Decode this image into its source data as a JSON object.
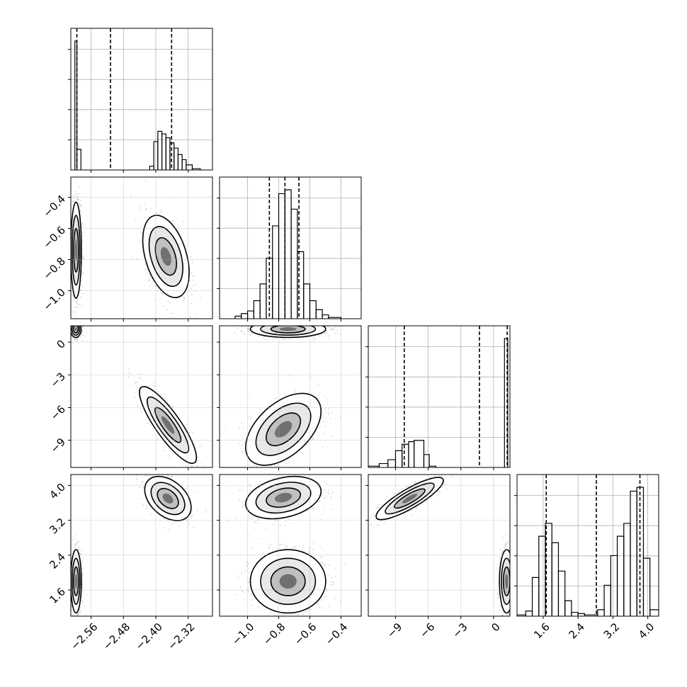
{
  "chart_data": {
    "type": "scatter",
    "title": "",
    "grid": true,
    "parameters": [
      {
        "ticks": [
          -2.56,
          -2.48,
          -2.4,
          -2.32
        ],
        "tick_labels": [
          "−2.56",
          "−2.48",
          "−2.40",
          "−2.32"
        ],
        "range": [
          -2.61,
          -2.26
        ]
      },
      {
        "ticks": [
          -1.0,
          -0.8,
          -0.6,
          -0.4
        ],
        "tick_labels": [
          "−1.0",
          "−0.8",
          "−0.6",
          "−0.4"
        ],
        "range": [
          -1.18,
          -0.27
        ]
      },
      {
        "ticks": [
          -9,
          -6,
          -3,
          0
        ],
        "tick_labels": [
          "−9",
          "−6",
          "−3",
          "0"
        ],
        "range": [
          -11.5,
          1.5
        ]
      },
      {
        "ticks": [
          1.6,
          2.4,
          3.2,
          4.0
        ],
        "tick_labels": [
          "1.6",
          "2.4",
          "3.2",
          "4.0"
        ],
        "range": [
          1.0,
          4.25
        ]
      }
    ],
    "histograms": [
      {
        "quantiles": [
          -2.595,
          -2.512,
          -2.361
        ],
        "bins": [
          {
            "x0": -2.6,
            "x1": -2.595,
            "h": 1.0
          },
          {
            "x0": -2.595,
            "x1": -2.585,
            "h": 0.16
          },
          {
            "x0": -2.415,
            "x1": -2.405,
            "h": 0.03
          },
          {
            "x0": -2.405,
            "x1": -2.395,
            "h": 0.22
          },
          {
            "x0": -2.395,
            "x1": -2.385,
            "h": 0.3
          },
          {
            "x0": -2.385,
            "x1": -2.375,
            "h": 0.28
          },
          {
            "x0": -2.375,
            "x1": -2.365,
            "h": 0.25
          },
          {
            "x0": -2.365,
            "x1": -2.355,
            "h": 0.21
          },
          {
            "x0": -2.355,
            "x1": -2.345,
            "h": 0.17
          },
          {
            "x0": -2.345,
            "x1": -2.335,
            "h": 0.12
          },
          {
            "x0": -2.335,
            "x1": -2.325,
            "h": 0.08
          },
          {
            "x0": -2.325,
            "x1": -2.31,
            "h": 0.04
          },
          {
            "x0": -2.31,
            "x1": -2.29,
            "h": 0.01
          }
        ]
      },
      {
        "quantiles": [
          -0.86,
          -0.76,
          -0.67
        ],
        "bins": [
          {
            "x0": -1.08,
            "x1": -1.04,
            "h": 0.02
          },
          {
            "x0": -1.04,
            "x1": -1.0,
            "h": 0.04
          },
          {
            "x0": -1.0,
            "x1": -0.96,
            "h": 0.06
          },
          {
            "x0": -0.96,
            "x1": -0.92,
            "h": 0.14
          },
          {
            "x0": -0.92,
            "x1": -0.88,
            "h": 0.27
          },
          {
            "x0": -0.88,
            "x1": -0.84,
            "h": 0.47
          },
          {
            "x0": -0.84,
            "x1": -0.8,
            "h": 0.72
          },
          {
            "x0": -0.8,
            "x1": -0.76,
            "h": 0.97
          },
          {
            "x0": -0.76,
            "x1": -0.72,
            "h": 1.0
          },
          {
            "x0": -0.72,
            "x1": -0.68,
            "h": 0.85
          },
          {
            "x0": -0.68,
            "x1": -0.64,
            "h": 0.52
          },
          {
            "x0": -0.64,
            "x1": -0.6,
            "h": 0.27
          },
          {
            "x0": -0.6,
            "x1": -0.56,
            "h": 0.14
          },
          {
            "x0": -0.56,
            "x1": -0.52,
            "h": 0.07
          },
          {
            "x0": -0.52,
            "x1": -0.48,
            "h": 0.03
          },
          {
            "x0": -0.48,
            "x1": -0.4,
            "h": 0.01
          }
        ]
      },
      {
        "quantiles": [
          -8.2,
          -1.3,
          1.25
        ],
        "bins": [
          {
            "x0": -11.5,
            "x1": -10.5,
            "h": 0.01
          },
          {
            "x0": -10.5,
            "x1": -9.7,
            "h": 0.03
          },
          {
            "x0": -9.7,
            "x1": -9.0,
            "h": 0.06
          },
          {
            "x0": -9.0,
            "x1": -8.4,
            "h": 0.13
          },
          {
            "x0": -8.4,
            "x1": -7.8,
            "h": 0.18
          },
          {
            "x0": -7.8,
            "x1": -7.3,
            "h": 0.2
          },
          {
            "x0": -7.3,
            "x1": -6.4,
            "h": 0.21
          },
          {
            "x0": -6.4,
            "x1": -5.9,
            "h": 0.1
          },
          {
            "x0": -5.9,
            "x1": -5.3,
            "h": 0.01
          },
          {
            "x0": 1.0,
            "x1": 1.3,
            "h": 1.0
          }
        ]
      },
      {
        "quantiles": [
          1.67,
          2.82,
          3.82
        ],
        "bins": [
          {
            "x0": 1.0,
            "x1": 1.2,
            "h": 0.01
          },
          {
            "x0": 1.2,
            "x1": 1.35,
            "h": 0.04
          },
          {
            "x0": 1.35,
            "x1": 1.5,
            "h": 0.3
          },
          {
            "x0": 1.5,
            "x1": 1.65,
            "h": 0.62
          },
          {
            "x0": 1.65,
            "x1": 1.8,
            "h": 0.72
          },
          {
            "x0": 1.8,
            "x1": 1.95,
            "h": 0.57
          },
          {
            "x0": 1.95,
            "x1": 2.1,
            "h": 0.35
          },
          {
            "x0": 2.1,
            "x1": 2.25,
            "h": 0.12
          },
          {
            "x0": 2.25,
            "x1": 2.4,
            "h": 0.03
          },
          {
            "x0": 2.4,
            "x1": 2.55,
            "h": 0.02
          },
          {
            "x0": 2.55,
            "x1": 2.85,
            "h": 0.01
          },
          {
            "x0": 2.85,
            "x1": 3.0,
            "h": 0.05
          },
          {
            "x0": 3.0,
            "x1": 3.15,
            "h": 0.24
          },
          {
            "x0": 3.15,
            "x1": 3.3,
            "h": 0.47
          },
          {
            "x0": 3.3,
            "x1": 3.45,
            "h": 0.62
          },
          {
            "x0": 3.45,
            "x1": 3.6,
            "h": 0.72
          },
          {
            "x0": 3.6,
            "x1": 3.75,
            "h": 0.97
          },
          {
            "x0": 3.75,
            "x1": 3.9,
            "h": 1.0
          },
          {
            "x0": 3.9,
            "x1": 4.05,
            "h": 0.45
          },
          {
            "x0": 4.05,
            "x1": 4.25,
            "h": 0.05
          }
        ]
      }
    ],
    "pairs": [
      {
        "row": 1,
        "col": 0,
        "clusters": [
          {
            "cx": -2.597,
            "cy": -0.74,
            "sx": 0.006,
            "sy": 0.14,
            "rho": 0.0,
            "w": 0.6
          },
          {
            "cx": -2.375,
            "cy": -0.78,
            "sx": 0.026,
            "sy": 0.12,
            "rho": -0.4,
            "w": 0.4
          }
        ]
      },
      {
        "row": 2,
        "col": 0,
        "clusters": [
          {
            "cx": -2.598,
            "cy": 1.2,
            "sx": 0.006,
            "sy": 0.35,
            "rho": 0.0,
            "w": 0.6
          },
          {
            "cx": -2.37,
            "cy": -7.6,
            "sx": 0.032,
            "sy": 1.6,
            "rho": -0.85,
            "w": 0.4
          }
        ]
      },
      {
        "row": 2,
        "col": 1,
        "clusters": [
          {
            "cx": -0.74,
            "cy": 1.2,
            "sx": 0.11,
            "sy": 0.35,
            "rho": 0.0,
            "w": 0.6
          },
          {
            "cx": -0.77,
            "cy": -8.0,
            "sx": 0.11,
            "sy": 1.5,
            "rho": 0.5,
            "w": 0.4
          }
        ]
      },
      {
        "row": 3,
        "col": 0,
        "clusters": [
          {
            "cx": -2.597,
            "cy": 1.8,
            "sx": 0.006,
            "sy": 0.33,
            "rho": 0.0,
            "w": 0.6
          },
          {
            "cx": -2.37,
            "cy": 3.7,
            "sx": 0.026,
            "sy": 0.23,
            "rho": -0.4,
            "w": 0.4
          }
        ]
      },
      {
        "row": 3,
        "col": 1,
        "clusters": [
          {
            "cx": -0.74,
            "cy": 1.8,
            "sx": 0.11,
            "sy": 0.33,
            "rho": 0.0,
            "w": 0.6
          },
          {
            "cx": -0.77,
            "cy": 3.72,
            "sx": 0.11,
            "sy": 0.22,
            "rho": 0.3,
            "w": 0.4
          }
        ]
      },
      {
        "row": 3,
        "col": 2,
        "clusters": [
          {
            "cx": 1.2,
            "cy": 1.8,
            "sx": 0.3,
            "sy": 0.33,
            "rho": 0.0,
            "w": 0.6
          },
          {
            "cx": -7.7,
            "cy": 3.7,
            "sx": 1.4,
            "sy": 0.22,
            "rho": 0.85,
            "w": 0.4
          }
        ]
      }
    ]
  }
}
